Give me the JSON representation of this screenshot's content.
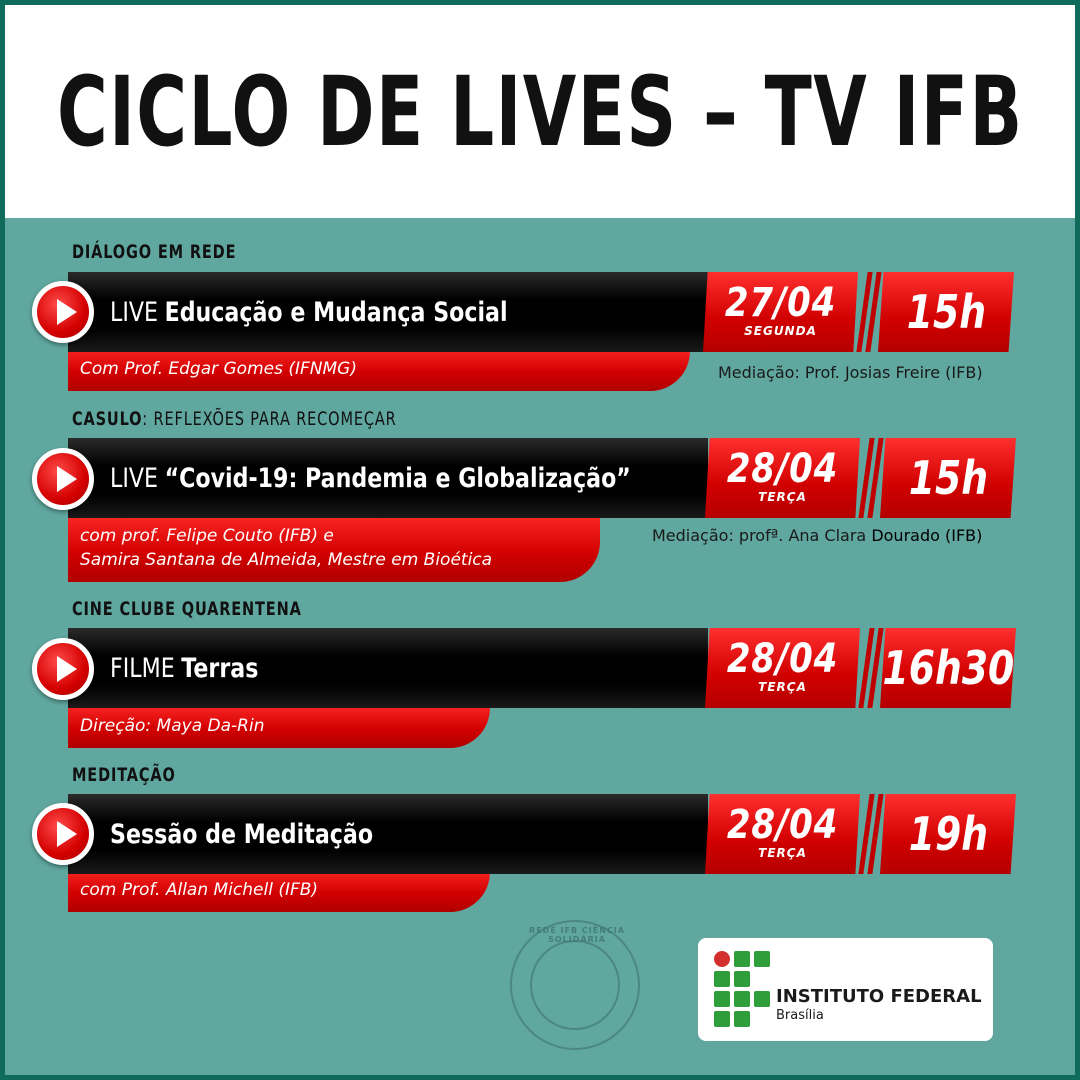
{
  "header": {
    "title": "CICLO DE LIVES – TV IFB"
  },
  "events": [
    {
      "section_bold": "DIÁLOGO EM REDE",
      "section_light": "",
      "kind": "LIVE",
      "title": "Educação e Mudança Social",
      "date": "27/04",
      "weekday": "SEGUNDA",
      "time": "15h",
      "details": [
        "Com Prof. Edgar Gomes (IFNMG)"
      ],
      "mediacao_light": "Mediação: Prof. Josias Freire (IFB)",
      "mediacao_dark": ""
    },
    {
      "section_bold": "CASULO",
      "section_light": ": REFLEXÕES PARA RECOMEÇAR",
      "kind": "LIVE",
      "title": "“Covid-19: Pandemia e Globalização”",
      "date": "28/04",
      "weekday": "TERÇA",
      "time": "15h",
      "details": [
        "com prof. Felipe Couto (IFB) e",
        "Samira Santana de Almeida, Mestre em Bioética"
      ],
      "mediacao_light": "Mediação: profª. Ana Clara ",
      "mediacao_dark": "Dourado (IFB)"
    },
    {
      "section_bold": "CINE CLUBE QUARENTENA",
      "section_light": "",
      "kind": "FILME",
      "title": "Terras",
      "date": "28/04",
      "weekday": "TERÇA",
      "time": "16h30",
      "details": [
        "Direção: Maya Da-Rin"
      ],
      "mediacao_light": "",
      "mediacao_dark": ""
    },
    {
      "section_bold": "MEDITAÇÃO",
      "section_light": "",
      "kind": "",
      "title": "Sessão de Meditação",
      "date": "28/04",
      "weekday": "TERÇA",
      "time": "19h",
      "details": [
        "com Prof. Allan Michell (IFB)"
      ],
      "mediacao_light": "",
      "mediacao_dark": ""
    }
  ],
  "seal": {
    "text": "REDE IFB CIÊNCIA SOLIDÁRIA"
  },
  "logo": {
    "name": "INSTITUTO FEDERAL",
    "campus": "Brasília"
  },
  "colors": {
    "accent_red": "#e00000",
    "background_teal": "#5fa79f",
    "border_green": "#0f6b5c"
  }
}
